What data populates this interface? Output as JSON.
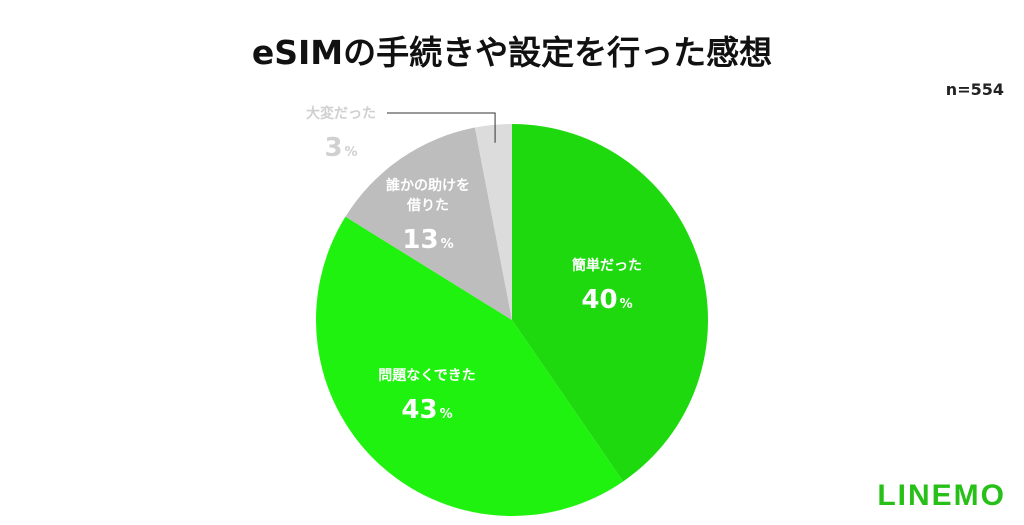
{
  "title": "eSIMの手続きや設定を行った感想",
  "sample_size": "n=554",
  "logo": "LINEMO",
  "chart_data": {
    "type": "pie",
    "slices": [
      {
        "label": "簡単だった",
        "value": 40,
        "value_label": "40",
        "unit": "%",
        "color": "#1ed90e"
      },
      {
        "label": "問題なくできた",
        "value": 43,
        "value_label": "43",
        "unit": "%",
        "color": "#1ff20e"
      },
      {
        "label": "誰かの助けを借りた",
        "value": 13,
        "value_label": "13",
        "unit": "%",
        "color": "#bdbdbd"
      },
      {
        "label": "大変だった",
        "value": 3,
        "value_label": "3",
        "unit": "%",
        "color": "#dcdcdc"
      }
    ],
    "start": "12 o'clock",
    "direction": "clockwise",
    "label_color_inside": "#ffffff",
    "label_color_outside": "#d0d0d0"
  }
}
